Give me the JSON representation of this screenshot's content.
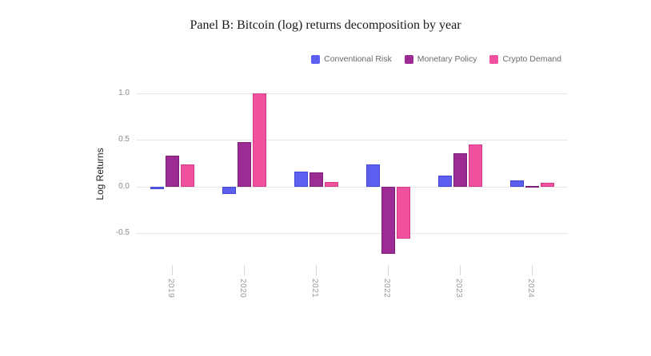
{
  "title": "Panel B: Bitcoin (log) returns decomposition by year",
  "chart_data": {
    "type": "bar",
    "title": "Panel B: Bitcoin (log) returns decomposition by year",
    "categories": [
      "2019",
      "2020",
      "2021",
      "2022",
      "2023",
      "2024"
    ],
    "series": [
      {
        "name": "Conventional Risk",
        "color": "#5d5ff1",
        "border": "#4446d6",
        "values": [
          -0.03,
          -0.08,
          0.16,
          0.24,
          0.12,
          0.07
        ]
      },
      {
        "name": "Monetary Policy",
        "color": "#9c2c94",
        "border": "#7c1d76",
        "values": [
          0.33,
          0.48,
          0.15,
          -0.72,
          0.36,
          0.01
        ]
      },
      {
        "name": "Crypto Demand",
        "color": "#f1509f",
        "border": "#d33b87",
        "values": [
          0.24,
          1.0,
          0.05,
          -0.56,
          0.45,
          0.04
        ]
      }
    ],
    "xlabel": "",
    "ylabel": "Log Returns",
    "yticks": [
      1.0,
      0.5,
      0.0,
      -0.5
    ],
    "ylim": [
      -0.84,
      1.1
    ],
    "grid": true,
    "legend_position": "top-right",
    "background": "#ffffff"
  }
}
